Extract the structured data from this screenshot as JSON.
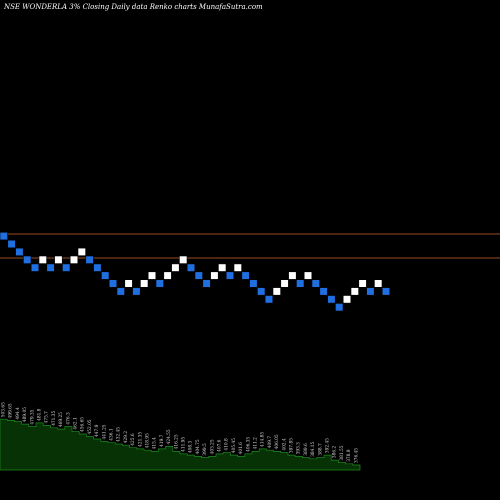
{
  "chart_data": {
    "type": "renko",
    "title": "NSE WONDERLA 3% Closing Daily data Renko charts MunafaSutra.com",
    "colors": {
      "background": "#000000",
      "up_brick": "#ffffff",
      "down_brick": "#1f6fe0",
      "reference_lines": "#c8692a",
      "volume_area": "#063206",
      "volume_top": "#1e8a1e"
    },
    "reference_lines": 2,
    "grid": false,
    "bricks": [
      {
        "dir": "down",
        "level": 12
      },
      {
        "dir": "down",
        "level": 11
      },
      {
        "dir": "down",
        "level": 10
      },
      {
        "dir": "down",
        "level": 9
      },
      {
        "dir": "down",
        "level": 8
      },
      {
        "dir": "up",
        "level": 9
      },
      {
        "dir": "down",
        "level": 8
      },
      {
        "dir": "up",
        "level": 9
      },
      {
        "dir": "down",
        "level": 8
      },
      {
        "dir": "up",
        "level": 9
      },
      {
        "dir": "up",
        "level": 10
      },
      {
        "dir": "down",
        "level": 9
      },
      {
        "dir": "down",
        "level": 8
      },
      {
        "dir": "down",
        "level": 7
      },
      {
        "dir": "down",
        "level": 6
      },
      {
        "dir": "down",
        "level": 5
      },
      {
        "dir": "up",
        "level": 6
      },
      {
        "dir": "down",
        "level": 5
      },
      {
        "dir": "up",
        "level": 6
      },
      {
        "dir": "up",
        "level": 7
      },
      {
        "dir": "down",
        "level": 6
      },
      {
        "dir": "up",
        "level": 7
      },
      {
        "dir": "up",
        "level": 8
      },
      {
        "dir": "up",
        "level": 9
      },
      {
        "dir": "down",
        "level": 8
      },
      {
        "dir": "down",
        "level": 7
      },
      {
        "dir": "down",
        "level": 6
      },
      {
        "dir": "up",
        "level": 7
      },
      {
        "dir": "up",
        "level": 8
      },
      {
        "dir": "down",
        "level": 7
      },
      {
        "dir": "up",
        "level": 8
      },
      {
        "dir": "down",
        "level": 7
      },
      {
        "dir": "down",
        "level": 6
      },
      {
        "dir": "down",
        "level": 5
      },
      {
        "dir": "down",
        "level": 4
      },
      {
        "dir": "up",
        "level": 5
      },
      {
        "dir": "up",
        "level": 6
      },
      {
        "dir": "up",
        "level": 7
      },
      {
        "dir": "down",
        "level": 6
      },
      {
        "dir": "up",
        "level": 7
      },
      {
        "dir": "down",
        "level": 6
      },
      {
        "dir": "down",
        "level": 5
      },
      {
        "dir": "down",
        "level": 4
      },
      {
        "dir": "down",
        "level": 3
      },
      {
        "dir": "up",
        "level": 4
      },
      {
        "dir": "up",
        "level": 5
      },
      {
        "dir": "up",
        "level": 6
      },
      {
        "dir": "down",
        "level": 5
      },
      {
        "dir": "up",
        "level": 6
      },
      {
        "dir": "down",
        "level": 5
      }
    ],
    "volume": {
      "values": [
        82,
        80,
        78,
        74,
        70,
        76,
        72,
        68,
        66,
        70,
        62,
        58,
        54,
        50,
        46,
        44,
        42,
        40,
        36,
        34,
        32,
        30,
        34,
        38,
        30,
        26,
        24,
        22,
        20,
        22,
        26,
        28,
        24,
        22,
        26,
        30,
        34,
        32,
        30,
        28,
        24,
        22,
        20,
        18,
        20,
        24,
        16,
        12,
        10,
        8
      ],
      "labels": [
        "503.65",
        "499.65",
        "494.4",
        "489.05",
        "479.35",
        "481.8",
        "475.7",
        "471.35",
        "469.25",
        "476.3",
        "462.1",
        "456.65",
        "452.05",
        "447.9",
        "441.25",
        "436.1",
        "432.45",
        "429.2",
        "425.6",
        "421.35",
        "418.95",
        "415.4",
        "419.7",
        "424.55",
        "416.25",
        "411.95",
        "408.3",
        "404.75",
        "399.5",
        "403.25",
        "407.6",
        "410.8",
        "405.45",
        "401.6",
        "406.35",
        "411.2",
        "414.85",
        "409.7",
        "406.05",
        "402.4",
        "397.85",
        "393.3",
        "389.6",
        "384.15",
        "388.7",
        "392.45",
        "386.2",
        "381.55",
        "378.9",
        "376.45"
      ]
    }
  }
}
